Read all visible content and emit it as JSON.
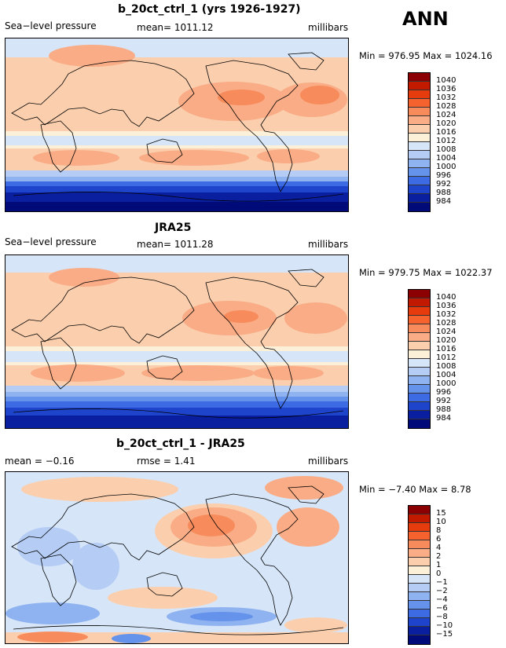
{
  "season": "ANN",
  "panels": [
    {
      "title": "b_20ct_ctrl_1 (yrs 1926-1927)",
      "left_label": "Sea−level pressure",
      "center_label": "mean= 1011.12",
      "right_label": "millibars",
      "minmax": "Min = 976.95 Max = 1024.16",
      "colorbar_labels": [
        "1040",
        "1036",
        "1032",
        "1028",
        "1024",
        "1020",
        "1016",
        "1012",
        "1008",
        "1004",
        "1000",
        "996",
        "992",
        "988",
        "984"
      ],
      "colors": [
        "#8b0000",
        "#c21a00",
        "#e63b0c",
        "#f5622e",
        "#f78b5b",
        "#f9ac85",
        "#fbcfae",
        "#fdf0d8",
        "#d6e6f8",
        "#b5cdf5",
        "#8fb2f0",
        "#6593eb",
        "#3c6be3",
        "#1f44cc",
        "#0a1fa0",
        "#000a78"
      ]
    },
    {
      "title": "JRA25",
      "left_label": "Sea−level pressure",
      "center_label": "mean= 1011.28",
      "right_label": "millibars",
      "minmax": "Min = 979.75 Max = 1022.37",
      "colorbar_labels": [
        "1040",
        "1036",
        "1032",
        "1028",
        "1024",
        "1020",
        "1016",
        "1012",
        "1008",
        "1004",
        "1000",
        "996",
        "992",
        "988",
        "984"
      ],
      "colors": [
        "#8b0000",
        "#c21a00",
        "#e63b0c",
        "#f5622e",
        "#f78b5b",
        "#f9ac85",
        "#fbcfae",
        "#fdf0d8",
        "#d6e6f8",
        "#b5cdf5",
        "#8fb2f0",
        "#6593eb",
        "#3c6be3",
        "#1f44cc",
        "#0a1fa0",
        "#000a78"
      ]
    },
    {
      "title": "b_20ct_ctrl_1 - JRA25",
      "left_label": "mean =  −0.16",
      "center_label": "rmse =    1.41",
      "right_label": "millibars",
      "minmax": "Min =  −7.40 Max =   8.78",
      "colorbar_labels": [
        "15",
        "10",
        "8",
        "6",
        "4",
        "2",
        "1",
        "0",
        "−1",
        "−2",
        "−4",
        "−6",
        "−8",
        "−10",
        "−15"
      ],
      "colors": [
        "#8b0000",
        "#c21a00",
        "#e63b0c",
        "#f5622e",
        "#f78b5b",
        "#f9ac85",
        "#fbcfae",
        "#fdf0d8",
        "#d6e6f8",
        "#b5cdf5",
        "#8fb2f0",
        "#6593eb",
        "#3c6be3",
        "#1f44cc",
        "#0a1fa0",
        "#000a78"
      ]
    }
  ]
}
